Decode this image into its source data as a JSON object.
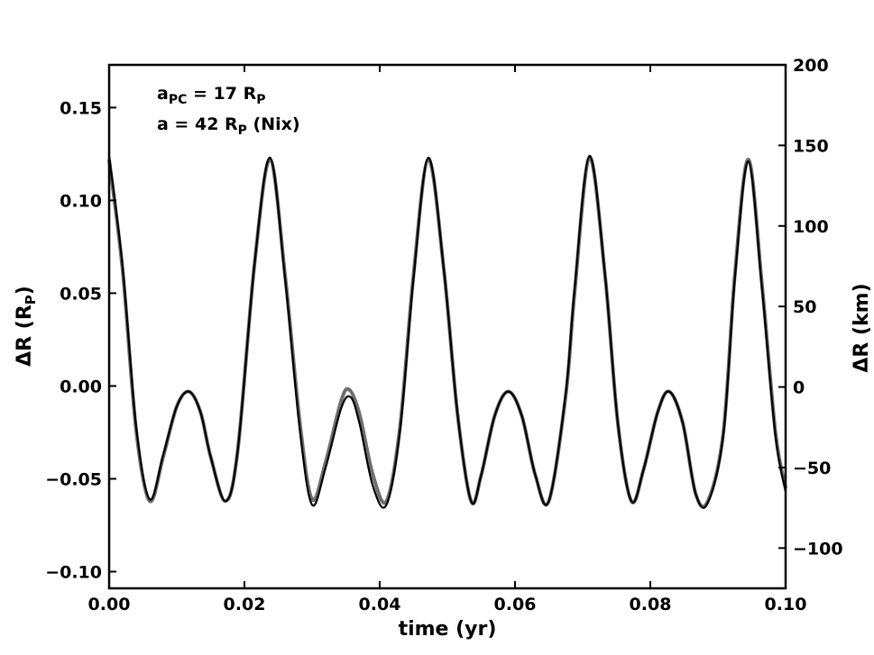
{
  "chart_data": {
    "type": "line",
    "xlabel": "time (yr)",
    "ylabel": "ΔR (R",
    "ylabel_sub": "P",
    "ylabel_close": ")",
    "ylabel_right": "ΔR (km)",
    "xlim": [
      0.0,
      0.1
    ],
    "ylim": [
      -0.109,
      0.173
    ],
    "ylim_right": [
      -125,
      200
    ],
    "x_ticks": [
      "0.00",
      "0.02",
      "0.04",
      "0.06",
      "0.08",
      "0.10"
    ],
    "y_ticks": [
      "0.15",
      "0.10",
      "0.05",
      "0.00",
      "−0.05",
      "−0.10"
    ],
    "y_ticks_right": [
      "200",
      "150",
      "100",
      "50",
      "0",
      "−50",
      "−100"
    ],
    "grid": false,
    "annotations": [
      {
        "prefix": "a",
        "sub": "PC",
        "mid": " = 17 R",
        "sub2": "P",
        "suffix": ""
      },
      {
        "prefix": "a = 42 R",
        "sub": "P",
        "mid": "  (Nix)",
        "sub2": "",
        "suffix": ""
      }
    ],
    "series": [
      {
        "color": "#6e6e6e",
        "x": [
          0.0,
          0.002,
          0.004,
          0.006,
          0.008,
          0.01,
          0.0118,
          0.0135,
          0.015,
          0.0172,
          0.019,
          0.0215,
          0.0238,
          0.026,
          0.0282,
          0.03,
          0.032,
          0.0343,
          0.0355,
          0.037,
          0.039,
          0.041,
          0.043,
          0.045,
          0.0472,
          0.0495,
          0.0515,
          0.0535,
          0.055,
          0.057,
          0.059,
          0.061,
          0.063,
          0.065,
          0.0675,
          0.0688,
          0.071,
          0.0733,
          0.0752,
          0.0772,
          0.079,
          0.0811,
          0.0828,
          0.0848,
          0.0867,
          0.0885,
          0.0908,
          0.0925,
          0.0945,
          0.0965,
          0.0985,
          0.1
        ],
        "values": [
          0.122,
          0.062,
          -0.024,
          -0.062,
          -0.038,
          -0.011,
          -0.003,
          -0.014,
          -0.038,
          -0.062,
          -0.035,
          0.066,
          0.122,
          0.06,
          -0.02,
          -0.061,
          -0.041,
          -0.008,
          -0.002,
          -0.015,
          -0.048,
          -0.062,
          -0.022,
          0.06,
          0.122,
          0.062,
          -0.015,
          -0.062,
          -0.048,
          -0.016,
          -0.003,
          -0.016,
          -0.048,
          -0.062,
          -0.005,
          0.05,
          0.123,
          0.06,
          -0.02,
          -0.062,
          -0.045,
          -0.014,
          -0.003,
          -0.02,
          -0.058,
          -0.062,
          -0.025,
          0.06,
          0.122,
          0.055,
          -0.025,
          -0.055
        ]
      },
      {
        "color": "#000000",
        "x": [
          0.0,
          0.002,
          0.004,
          0.006,
          0.008,
          0.01,
          0.0118,
          0.0135,
          0.015,
          0.0172,
          0.019,
          0.0215,
          0.0238,
          0.026,
          0.0282,
          0.03,
          0.032,
          0.0343,
          0.0357,
          0.037,
          0.039,
          0.041,
          0.043,
          0.045,
          0.0472,
          0.0495,
          0.0515,
          0.0535,
          0.055,
          0.057,
          0.059,
          0.061,
          0.063,
          0.065,
          0.0675,
          0.0688,
          0.071,
          0.0733,
          0.0752,
          0.0772,
          0.079,
          0.0811,
          0.0828,
          0.0848,
          0.0867,
          0.0885,
          0.0908,
          0.0925,
          0.0945,
          0.0965,
          0.0985,
          0.1
        ],
        "values": [
          0.124,
          0.064,
          -0.022,
          -0.061,
          -0.037,
          -0.011,
          -0.003,
          -0.014,
          -0.038,
          -0.062,
          -0.035,
          0.066,
          0.123,
          0.058,
          -0.024,
          -0.064,
          -0.044,
          -0.012,
          -0.006,
          -0.02,
          -0.054,
          -0.064,
          -0.024,
          0.058,
          0.123,
          0.062,
          -0.015,
          -0.062,
          -0.048,
          -0.016,
          -0.003,
          -0.016,
          -0.048,
          -0.062,
          -0.004,
          0.052,
          0.124,
          0.06,
          -0.02,
          -0.062,
          -0.045,
          -0.014,
          -0.003,
          -0.02,
          -0.058,
          -0.063,
          -0.026,
          0.058,
          0.121,
          0.053,
          -0.027,
          -0.057
        ]
      }
    ]
  }
}
